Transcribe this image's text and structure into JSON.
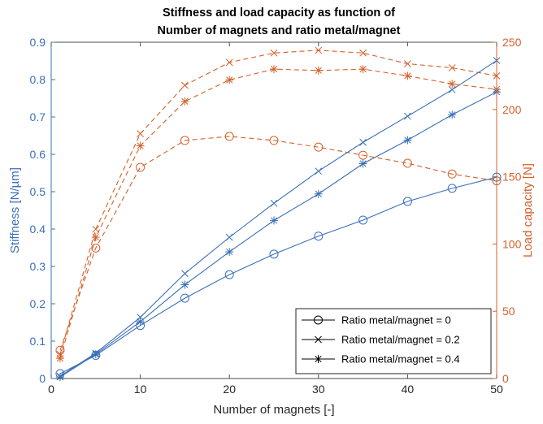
{
  "chart_data": {
    "type": "line",
    "title": [
      "Stiffness and load capacity as function of",
      "Number of magnets and ratio metal/magnet"
    ],
    "xlabel": "Number of magnets [-]",
    "ylabel_left": "Stiffness [N/µm]",
    "ylabel_right": "Load capacity [N]",
    "xlim": [
      0,
      50
    ],
    "ylim_left": [
      0,
      0.9
    ],
    "ylim_right": [
      0,
      250
    ],
    "x_ticks": [
      "0",
      "10",
      "20",
      "30",
      "40",
      "50"
    ],
    "y_left_ticks": [
      "0",
      "0.1",
      "0.2",
      "0.3",
      "0.4",
      "0.5",
      "0.6",
      "0.7",
      "0.8",
      "0.9"
    ],
    "y_right_ticks": [
      "0",
      "50",
      "100",
      "150",
      "200",
      "250"
    ],
    "grid": false,
    "legend_position": "bottom-right",
    "colors": {
      "stiffness": "#3a6fb8",
      "load": "#d4602a",
      "axis_left": "#3a6fb8",
      "axis_right": "#d4602a",
      "legend_line": "#000000"
    },
    "x": [
      1,
      5,
      10,
      15,
      20,
      25,
      30,
      35,
      40,
      45,
      50
    ],
    "series": [
      {
        "name": "Ratio metal/magnet = 0",
        "marker": "o",
        "stiffness": [
          0.013,
          0.062,
          0.142,
          0.215,
          0.278,
          0.333,
          0.381,
          0.424,
          0.474,
          0.509,
          0.539
        ],
        "load": [
          21,
          97,
          157,
          177,
          180,
          177,
          172,
          166,
          160,
          152,
          147
        ]
      },
      {
        "name": "Ratio metal/magnet = 0.2",
        "marker": "x",
        "stiffness": [
          0.006,
          0.068,
          0.164,
          0.281,
          0.378,
          0.469,
          0.555,
          0.632,
          0.702,
          0.773,
          0.851
        ],
        "load": [
          18,
          111,
          182,
          218,
          235,
          242,
          244,
          242,
          234,
          231,
          225
        ]
      },
      {
        "name": "Ratio metal/magnet = 0.4",
        "marker": "*",
        "stiffness": [
          0.004,
          0.065,
          0.152,
          0.251,
          0.339,
          0.423,
          0.494,
          0.575,
          0.638,
          0.706,
          0.767
        ],
        "load": [
          15,
          105,
          173,
          206,
          222,
          230,
          229,
          230,
          225,
          219,
          215
        ]
      }
    ]
  }
}
